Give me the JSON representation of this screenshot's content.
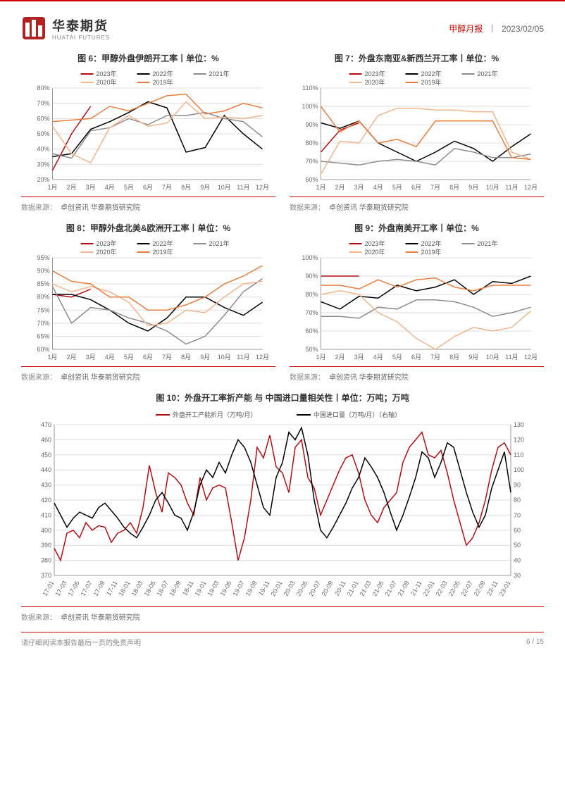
{
  "header": {
    "logo_cn": "华泰期货",
    "logo_en": "HUATAI FUTURES",
    "report_title": "甲醇月报",
    "date": "2023/02/05"
  },
  "colors": {
    "brand_red": "#b22222",
    "y2023": "#b50e12",
    "y2022": "#000000",
    "y2021": "#8c8c8c",
    "y2020": "#f2b58c",
    "y2019": "#e87d3e",
    "grid": "#dddddd",
    "axis": "#999999",
    "text": "#666666",
    "big_series1": "#b50e12",
    "big_series2": "#000000"
  },
  "small_legend": [
    {
      "key": "y2023",
      "label": "2023年"
    },
    {
      "key": "y2022",
      "label": "2022年"
    },
    {
      "key": "y2021",
      "label": "2021年"
    },
    {
      "key": "y2020",
      "label": "2020年"
    },
    {
      "key": "y2019",
      "label": "2019年"
    }
  ],
  "months": [
    "1月",
    "2月",
    "3月",
    "4月",
    "5月",
    "6月",
    "7月",
    "8月",
    "9月",
    "10月",
    "11月",
    "12月"
  ],
  "src_label": "数据来源：",
  "src_value": "卓创资讯 华泰期货研究院",
  "charts": {
    "c6": {
      "title": "图 6：甲醇外盘伊朗开工率丨单位：%",
      "ylim": [
        20,
        80
      ],
      "ytick_step": 10,
      "series": {
        "y2023": [
          26,
          50,
          68
        ],
        "y2022": [
          35,
          37,
          53,
          58,
          64,
          71,
          67,
          38,
          41,
          62,
          50,
          40
        ],
        "y2021": [
          37,
          34,
          52,
          54,
          60,
          56,
          62,
          62,
          64,
          60,
          58,
          48
        ],
        "y2020": [
          55,
          37,
          31,
          54,
          62,
          55,
          57,
          71,
          60,
          61,
          60,
          62
        ],
        "y2019": [
          58,
          59,
          60,
          68,
          65,
          70,
          75,
          76,
          63,
          65,
          70,
          67
        ]
      }
    },
    "c7": {
      "title": "图 7：外盘东南亚&新西兰开工率丨单位：%",
      "ylim": [
        60,
        110
      ],
      "ytick_step": 10,
      "series": {
        "y2023": [
          75,
          87,
          91
        ],
        "y2022": [
          91,
          88,
          92,
          80,
          75,
          70,
          75,
          81,
          77,
          70,
          78,
          85
        ],
        "y2021": [
          70,
          69,
          68,
          70,
          71,
          70,
          68,
          77,
          75,
          72,
          72,
          74
        ],
        "y2020": [
          63,
          81,
          80,
          95,
          99,
          99,
          98,
          98,
          97,
          97,
          75,
          71
        ],
        "y2019": [
          100,
          86,
          92,
          80,
          82,
          78,
          92,
          92,
          92,
          92,
          72,
          71
        ]
      }
    },
    "c8": {
      "title": "图 8：甲醇外盘北美&欧洲开工率丨单位：%",
      "ylim": [
        60,
        95
      ],
      "ytick_step": 5,
      "series": {
        "y2023": [
          81,
          80,
          83
        ],
        "y2022": [
          81,
          81,
          79,
          75,
          70,
          67,
          72,
          80,
          80,
          76,
          73,
          78
        ],
        "y2021": [
          84,
          70,
          76,
          75,
          72,
          70,
          67,
          62,
          65,
          73,
          82,
          87
        ],
        "y2020": [
          85,
          82,
          84,
          82,
          78,
          69,
          70,
          75,
          74,
          80,
          85,
          86
        ],
        "y2019": [
          90,
          86,
          85,
          80,
          80,
          75,
          75,
          77,
          80,
          85,
          88,
          92
        ]
      }
    },
    "c9": {
      "title": "图 9：外盘南美开工率丨单位：%",
      "ylim": [
        50,
        100
      ],
      "ytick_step": 10,
      "series": {
        "y2023": [
          90,
          90,
          90
        ],
        "y2022": [
          76,
          72,
          79,
          78,
          85,
          82,
          84,
          88,
          80,
          87,
          86,
          90
        ],
        "y2021": [
          68,
          68,
          67,
          73,
          72,
          77,
          77,
          76,
          73,
          68,
          70,
          73
        ],
        "y2020": [
          80,
          82,
          80,
          70,
          65,
          56,
          50,
          57,
          62,
          60,
          62,
          71
        ],
        "y2019": [
          85,
          85,
          83,
          88,
          84,
          88,
          89,
          84,
          82,
          85,
          85,
          85
        ]
      }
    }
  },
  "big_chart": {
    "title": "图 10：外盘开工率折产能 与 中国进口量相关性丨单位：万吨；万吨",
    "legend": [
      {
        "key": "big_series1",
        "label": "外盘开工产能折月（万吨/月）"
      },
      {
        "key": "big_series2",
        "label": "中国进口量（万吨/月）（右轴）"
      }
    ],
    "y1lim": [
      370,
      470
    ],
    "y1tick_step": 10,
    "y2lim": [
      30,
      130
    ],
    "y2tick_step": 10,
    "xlabels": [
      "17-01",
      "17-03",
      "17-05",
      "17-07",
      "17-09",
      "17-11",
      "18-01",
      "18-03",
      "18-05",
      "18-07",
      "18-09",
      "18-11",
      "19-01",
      "19-03",
      "19-05",
      "19-07",
      "19-09",
      "19-11",
      "20-01",
      "20-03",
      "20-05",
      "20-07",
      "20-09",
      "20-11",
      "21-01",
      "21-03",
      "21-05",
      "21-07",
      "21-09",
      "21-11",
      "22-01",
      "22-03",
      "22-05",
      "22-07",
      "22-09",
      "22-11",
      "23-01"
    ],
    "series1": [
      388,
      380,
      398,
      400,
      395,
      405,
      400,
      403,
      402,
      392,
      398,
      400,
      405,
      398,
      415,
      443,
      425,
      412,
      438,
      435,
      430,
      418,
      410,
      435,
      420,
      428,
      430,
      428,
      405,
      380,
      395,
      420,
      455,
      448,
      463,
      442,
      438,
      425,
      455,
      460,
      435,
      428,
      410,
      420,
      430,
      440,
      448,
      450,
      438,
      420,
      410,
      405,
      415,
      420,
      425,
      445,
      455,
      460,
      465,
      450,
      448,
      453,
      438,
      420,
      405,
      390,
      395,
      405,
      420,
      440,
      455,
      458,
      450
    ],
    "series2": [
      78,
      70,
      62,
      68,
      72,
      70,
      68,
      75,
      78,
      73,
      68,
      62,
      58,
      55,
      62,
      70,
      80,
      85,
      78,
      70,
      68,
      60,
      72,
      90,
      100,
      95,
      105,
      98,
      110,
      120,
      115,
      105,
      90,
      75,
      70,
      95,
      105,
      125,
      120,
      128,
      110,
      80,
      60,
      55,
      62,
      70,
      78,
      88,
      95,
      108,
      102,
      95,
      85,
      72,
      60,
      70,
      82,
      95,
      112,
      108,
      95,
      105,
      118,
      115,
      100,
      85,
      72,
      62,
      70,
      88,
      100,
      112,
      85
    ]
  },
  "footer": {
    "disclaimer": "请仔细阅读本报告最后一页的免责声明",
    "page_cur": "6",
    "page_sep": " / ",
    "page_total": "15"
  }
}
